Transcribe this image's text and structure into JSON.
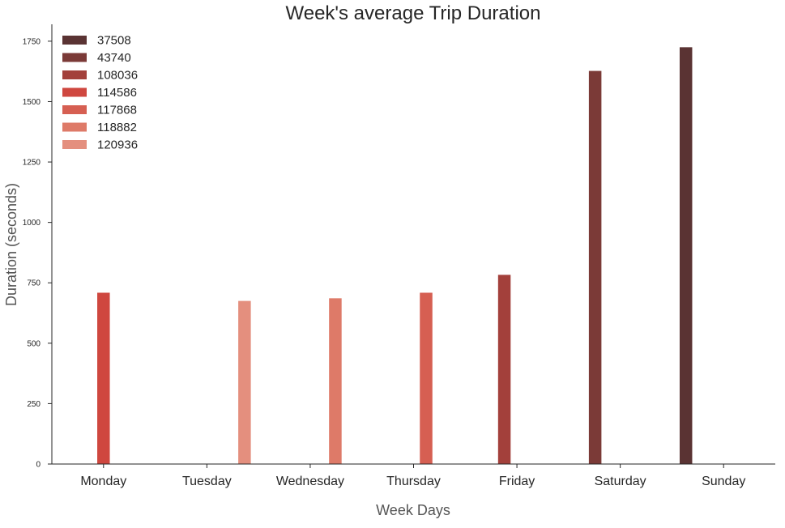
{
  "chart_data": {
    "type": "bar",
    "title": "Week's average Trip Duration",
    "xlabel": "Week Days",
    "ylabel": "Duration (seconds)",
    "categories": [
      "Monday",
      "Tuesday",
      "Wednesday",
      "Thursday",
      "Friday",
      "Saturday",
      "Sunday"
    ],
    "ylim": [
      0,
      1820
    ],
    "yticks": [
      0,
      250,
      500,
      750,
      1000,
      1250,
      1500,
      1750
    ],
    "grid": false,
    "legend_position": "top-left",
    "series": [
      {
        "name": "37508",
        "color": "#5a3333",
        "values": [
          null,
          null,
          null,
          null,
          null,
          null,
          1725
        ]
      },
      {
        "name": "43740",
        "color": "#7b3a37",
        "values": [
          null,
          null,
          null,
          null,
          null,
          1627,
          null
        ]
      },
      {
        "name": "108036",
        "color": "#a3403b",
        "values": [
          null,
          null,
          null,
          null,
          783,
          null,
          null
        ]
      },
      {
        "name": "114586",
        "color": "#cf473f",
        "values": [
          709,
          null,
          null,
          null,
          null,
          null,
          null
        ]
      },
      {
        "name": "117868",
        "color": "#d65f52",
        "values": [
          null,
          null,
          null,
          709,
          null,
          null,
          null
        ]
      },
      {
        "name": "118882",
        "color": "#de7a68",
        "values": [
          null,
          null,
          686,
          null,
          null,
          null,
          null
        ]
      },
      {
        "name": "120936",
        "color": "#e48f7e",
        "values": [
          null,
          675,
          null,
          null,
          null,
          null,
          null
        ]
      }
    ]
  }
}
